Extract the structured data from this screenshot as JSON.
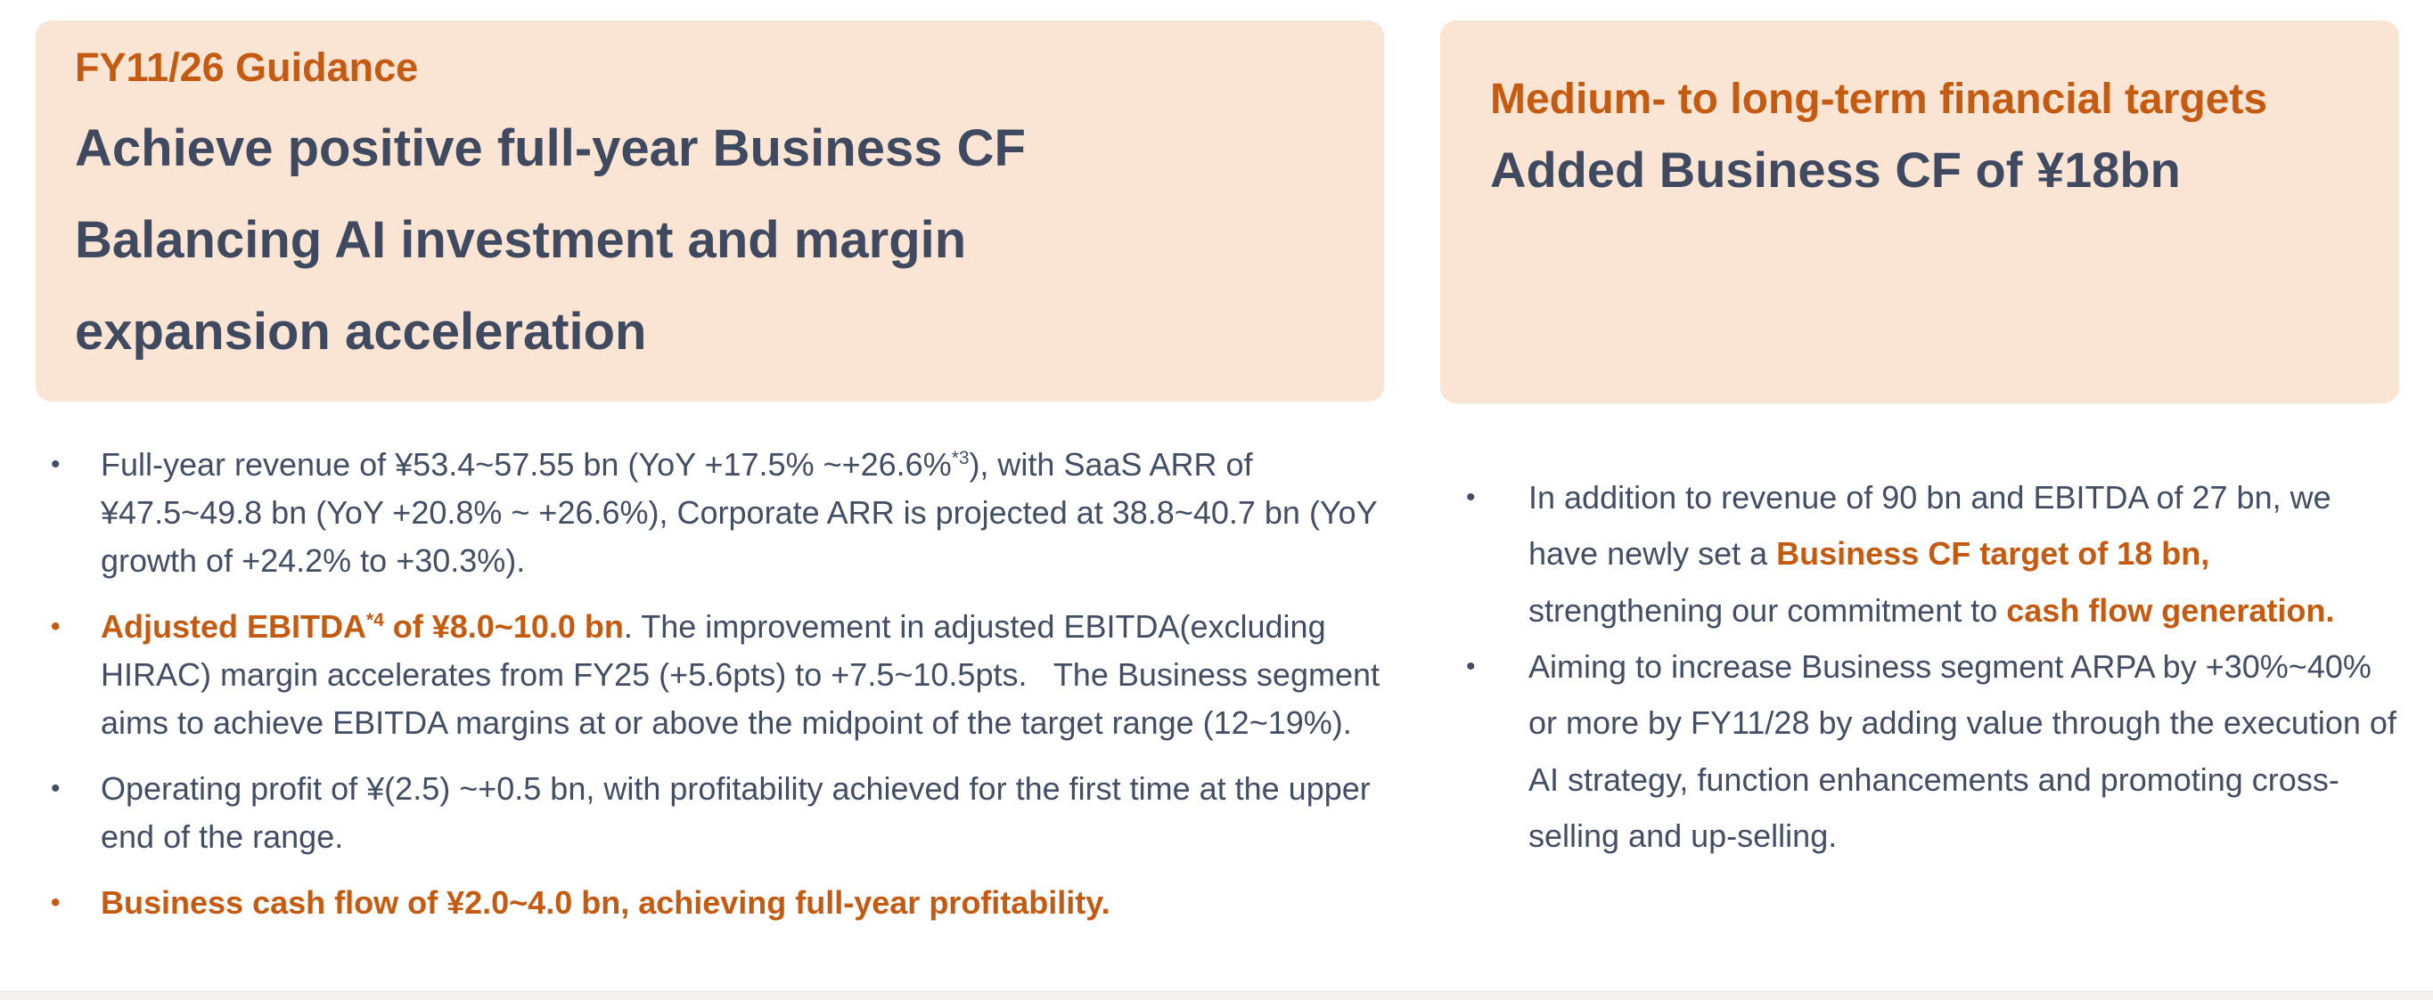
{
  "colors": {
    "accent_orange": "#c55a11",
    "dark_text": "#3f4a61",
    "panel_background": "#fae5d4",
    "page_background": "#ffffff"
  },
  "ui": {
    "bullet_char": "•"
  },
  "left": {
    "header": {
      "eyebrow": "FY11/26 Guidance",
      "title_lines": [
        "Achieve positive full-year Business CF",
        "Balancing AI investment and margin",
        "expansion acceleration"
      ]
    },
    "bullets": [
      {
        "segments": [
          "Full-year revenue of ¥53.4~57.55 bn (YoY +17.5% ~+26.6%",
          "*3",
          "), with SaaS ARR of ¥47.5~49.8 bn (YoY +20.8% ~ +26.6%), Corporate ARR is projected at 38.8~40.7 bn (YoY growth of +24.2% to +30.3%)."
        ]
      },
      {
        "segments": [
          "Adjusted EBITDA",
          "*4",
          " of ¥8.0~10.0 bn",
          ". The improvement in adjusted EBITDA(excluding HIRAC) margin accelerates from FY25 (+5.6pts) to +7.5~10.5pts.   The Business segment aims to achieve EBITDA margins at or above the midpoint of the target range (12~19%)."
        ]
      },
      {
        "segments": [
          "Operating profit of ¥(2.5) ~+0.5 bn, with profitability achieved for the first time at the upper end of the range."
        ]
      },
      {
        "segments": [
          "Business cash flow of ¥2.0~4.0 bn, achieving full-year profitability."
        ]
      }
    ]
  },
  "right": {
    "header": {
      "eyebrow": "Medium- to long-term financial targets",
      "title": "Added Business CF of ¥18bn"
    },
    "bullets": [
      {
        "segments": [
          "In addition to revenue of 90 bn and EBITDA of 27 bn, we have newly set a ",
          "Business CF target of 18 bn,",
          " strengthening our commitment to ",
          "cash flow generation."
        ]
      },
      {
        "segments": [
          "Aiming to increase Business segment ARPA by +30%~40% or more by FY11/28 by adding value through the execution of AI strategy, function enhancements and promoting cross-selling and up-selling."
        ]
      }
    ]
  }
}
